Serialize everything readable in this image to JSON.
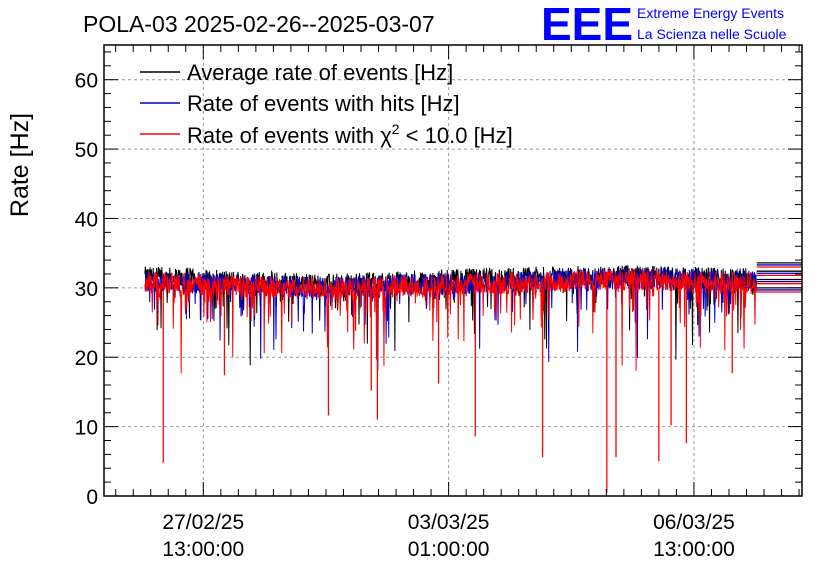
{
  "chart_data": {
    "type": "line",
    "title": "POLA-03 2025-02-26--2025-03-07",
    "ylabel": "Rate [Hz]",
    "xlabel": "",
    "ylim": [
      0,
      65
    ],
    "yticks": [
      0,
      10,
      20,
      30,
      40,
      50,
      60
    ],
    "xlim": [
      "2025-02-26 03:00:00",
      "2025-03-08 02:00:00"
    ],
    "xticks": [
      {
        "date": "27/02/25",
        "time": "13:00:00",
        "x": "2025-02-27 13:00:00"
      },
      {
        "date": "03/03/25",
        "time": "01:00:00",
        "x": "2025-03-03 01:00:00"
      },
      {
        "date": "06/03/25",
        "time": "13:00:00",
        "x": "2025-03-06 13:00:00"
      }
    ],
    "grid": true,
    "legend_placement": "top-left",
    "data_start": "2025-02-26 17:00:00",
    "data_end": "2025-03-07 10:30:00",
    "series": [
      {
        "name": "Average rate of events [Hz]",
        "color": "#000000",
        "baseline": [
          [
            0.0,
            31.5
          ],
          [
            0.3,
            30.4
          ],
          [
            0.55,
            31.3
          ],
          [
            0.8,
            31.7
          ],
          [
            1.0,
            31.2
          ]
        ],
        "spikes": []
      },
      {
        "name": "Rate of events with hits [Hz]",
        "color": "#0000cc",
        "baseline": [
          [
            0.0,
            31.0
          ],
          [
            0.3,
            30.0
          ],
          [
            0.55,
            30.8
          ],
          [
            0.8,
            31.4
          ],
          [
            1.0,
            30.9
          ]
        ],
        "spikes": []
      },
      {
        "name": "Rate of events with χ² < 10.0 [Hz]",
        "color": "#ff0000",
        "baseline": [
          [
            0.0,
            30.8
          ],
          [
            0.3,
            29.8
          ],
          [
            0.55,
            30.6
          ],
          [
            0.8,
            31.2
          ],
          [
            1.0,
            30.6
          ]
        ],
        "spikes": [
          [
            0.03,
            4.8
          ],
          [
            0.13,
            17.4
          ],
          [
            0.24,
            25.0
          ],
          [
            0.3,
            11.6
          ],
          [
            0.37,
            15.2
          ],
          [
            0.38,
            11.0
          ],
          [
            0.48,
            16.2
          ],
          [
            0.54,
            8.6
          ],
          [
            0.65,
            5.6
          ],
          [
            0.755,
            0.5
          ],
          [
            0.77,
            5.6
          ],
          [
            0.84,
            5.0
          ],
          [
            0.86,
            10.2
          ],
          [
            0.885,
            7.6
          ],
          [
            0.96,
            17.7
          ]
        ]
      }
    ]
  },
  "brand": {
    "logo": "EEE",
    "line1": "Extreme Energy Events",
    "line2": "La Scienza nelle Scuole"
  },
  "legend": {
    "items": [
      {
        "label": "Average rate of events [Hz]",
        "color": "#000000"
      },
      {
        "label": "Rate of events with hits [Hz]",
        "color": "#0000cc"
      },
      {
        "label_main": "Rate of events with χ",
        "label_sup": "2",
        "label_rest": " < 10.0 [Hz]",
        "color": "#ff0000"
      }
    ]
  }
}
